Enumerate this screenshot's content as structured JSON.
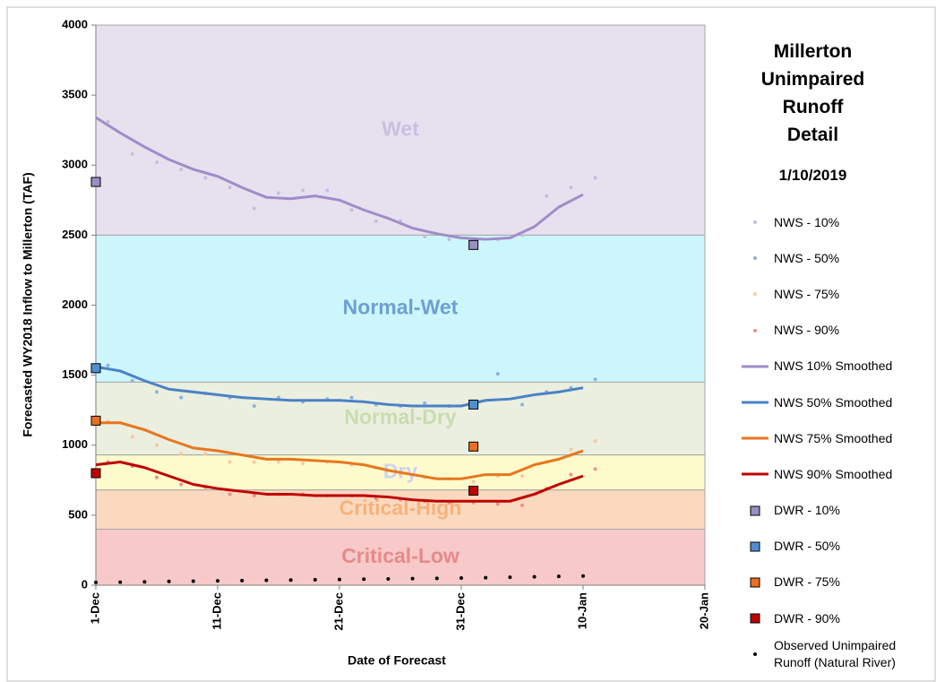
{
  "chart_data": {
    "type": "line",
    "title": "Millerton Unimpaired Runoff Detail",
    "subtitle": "1/10/2019",
    "x_label": "Date of Forecast",
    "y_label": "Forecasted WY2018 Inflow to Millerton (TAF)",
    "xlim": [
      0,
      50
    ],
    "xticks": [
      {
        "value": 0,
        "label": "1-Dec"
      },
      {
        "value": 10,
        "label": "11-Dec"
      },
      {
        "value": 20,
        "label": "21-Dec"
      },
      {
        "value": 30,
        "label": "31-Dec"
      },
      {
        "value": 40,
        "label": "10-Jan"
      },
      {
        "value": 50,
        "label": "20-Jan"
      }
    ],
    "ylim": [
      0,
      4000
    ],
    "yticks": [
      0,
      500,
      1000,
      1500,
      2000,
      2500,
      3000,
      3500,
      4000
    ],
    "bands": [
      {
        "label": "Wet",
        "from": 2500,
        "to": 4000,
        "color": "#e7e1ef",
        "label_color": "#c9bfe0"
      },
      {
        "label": "Normal-Wet",
        "from": 1450,
        "to": 2500,
        "color": "#ccf6fb",
        "label_color": "#6d9fd2"
      },
      {
        "label": "Normal-Dry",
        "from": 930,
        "to": 1450,
        "color": "#ebefdf",
        "label_color": "#c9ddb0"
      },
      {
        "label": "Dry",
        "from": 680,
        "to": 930,
        "color": "#fdfbcc",
        "label_color": "#cdd2f2"
      },
      {
        "label": "Critical-High",
        "from": 400,
        "to": 680,
        "color": "#fbd9bf",
        "label_color": "#f5b27c"
      },
      {
        "label": "Critical-Low",
        "from": 0,
        "to": 400,
        "color": "#f8c9c9",
        "label_color": "#e68a8a"
      }
    ],
    "x": [
      0,
      2,
      4,
      6,
      8,
      10,
      12,
      14,
      16,
      18,
      20,
      22,
      24,
      26,
      28,
      30,
      32,
      34,
      36,
      38,
      40
    ],
    "series": [
      {
        "name": "NWS - 10%",
        "style": "points",
        "color": "#c6bde0",
        "values": [
          3310,
          3080,
          3020,
          2970,
          2910,
          2840,
          2690,
          2800,
          2820,
          2820,
          2680,
          2600,
          2600,
          2490,
          2470,
          2450,
          2470,
          2500,
          2780,
          2840,
          2910
        ]
      },
      {
        "name": "NWS - 50%",
        "style": "points",
        "color": "#8eb0e2",
        "values": [
          1570,
          1460,
          1380,
          1340,
          1370,
          1340,
          1280,
          1340,
          1310,
          1330,
          1340,
          1290,
          1280,
          1300,
          1280,
          1270,
          1510,
          1290,
          1380,
          1410,
          1470
        ]
      },
      {
        "name": "NWS - 75%",
        "style": "points",
        "color": "#f8c8a0",
        "values": [
          1170,
          1060,
          1000,
          940,
          940,
          880,
          880,
          880,
          870,
          880,
          860,
          840,
          790,
          770,
          760,
          740,
          780,
          780,
          880,
          970,
          1030
        ]
      },
      {
        "name": "NWS - 90%",
        "style": "points",
        "color": "#e69090",
        "values": [
          880,
          850,
          770,
          720,
          700,
          650,
          640,
          650,
          650,
          640,
          640,
          620,
          610,
          600,
          590,
          590,
          580,
          570,
          690,
          790,
          830
        ]
      },
      {
        "name": "NWS 10% Smoothed",
        "style": "line",
        "color": "#a08cc8",
        "values": [
          3340,
          3230,
          3130,
          3040,
          2970,
          2920,
          2840,
          2770,
          2760,
          2780,
          2750,
          2680,
          2620,
          2550,
          2510,
          2480,
          2470,
          2480,
          2560,
          2700,
          2790
        ]
      },
      {
        "name": "NWS 50% Smoothed",
        "style": "line",
        "color": "#4a82c6",
        "values": [
          1560,
          1530,
          1460,
          1400,
          1380,
          1360,
          1340,
          1330,
          1320,
          1320,
          1320,
          1310,
          1290,
          1280,
          1280,
          1280,
          1320,
          1330,
          1360,
          1380,
          1410
        ]
      },
      {
        "name": "NWS 75% Smoothed",
        "style": "line",
        "color": "#e8761e",
        "values": [
          1160,
          1160,
          1110,
          1040,
          980,
          960,
          930,
          900,
          900,
          890,
          880,
          860,
          820,
          790,
          760,
          760,
          790,
          790,
          860,
          900,
          960
        ]
      },
      {
        "name": "NWS 90% Smoothed",
        "style": "line",
        "color": "#c00000",
        "values": [
          860,
          880,
          840,
          780,
          720,
          690,
          670,
          650,
          650,
          640,
          640,
          640,
          630,
          610,
          600,
          600,
          600,
          600,
          650,
          720,
          780
        ]
      },
      {
        "name": "DWR - 10%",
        "style": "square",
        "color": "#9b8ec4",
        "x": [
          0,
          31
        ],
        "values": [
          2880,
          2430
        ]
      },
      {
        "name": "DWR - 50%",
        "style": "square",
        "color": "#4f8fd0",
        "x": [
          0,
          31
        ],
        "values": [
          1550,
          1290
        ]
      },
      {
        "name": "DWR - 75%",
        "style": "square",
        "color": "#e87020",
        "x": [
          0,
          31
        ],
        "values": [
          1175,
          990
        ]
      },
      {
        "name": "DWR - 90%",
        "style": "square",
        "color": "#c00000",
        "x": [
          0,
          31
        ],
        "values": [
          800,
          675
        ]
      },
      {
        "name": "Observed Unimpaired Runoff (Natural River)",
        "style": "dots",
        "color": "#000000",
        "values": [
          20,
          22,
          24,
          27,
          29,
          31,
          33,
          35,
          37,
          39,
          41,
          43,
          45,
          47,
          49,
          51,
          54,
          57,
          60,
          63,
          66
        ]
      }
    ]
  }
}
